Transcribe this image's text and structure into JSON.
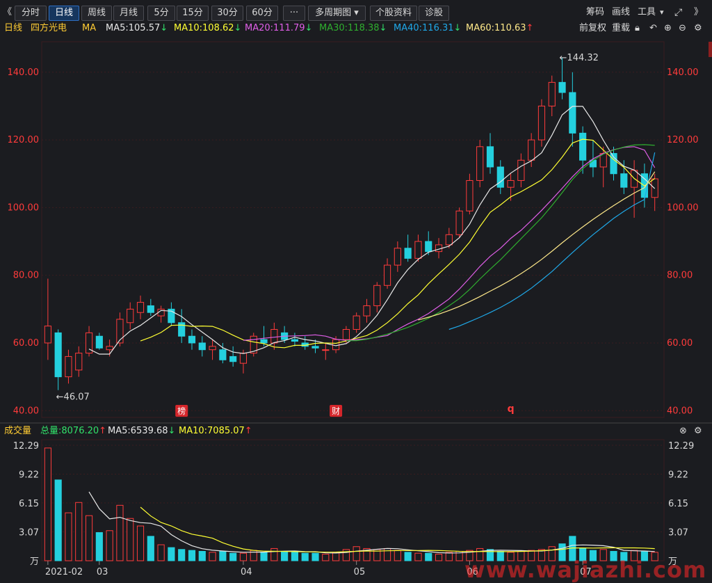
{
  "toolbar": {
    "buttons": [
      "分时",
      "日线",
      "周线",
      "月线",
      "5分",
      "15分",
      "30分",
      "60分",
      "···",
      "多周期图",
      "个股资料",
      "诊股"
    ],
    "active_index": 1,
    "multi_period_arrow": "▾",
    "right_links": [
      "筹码",
      "画线",
      "工具"
    ],
    "tool_arrow": "▾",
    "prev_glyph": "《",
    "next_glyph": "》"
  },
  "infobar": {
    "period": "日线",
    "stock_name": "四方光电",
    "indicator": "MA",
    "ma_labels": [
      {
        "text": "MA5:105.57",
        "arrow": "↓",
        "color": "#e8e8e8",
        "arrow_color": "#31e26a"
      },
      {
        "text": "MA10:108.62",
        "arrow": "↓",
        "color": "#ffff33",
        "arrow_color": "#31e26a"
      },
      {
        "text": "MA20:111.79",
        "arrow": "↓",
        "color": "#e05fe8",
        "arrow_color": "#31e26a"
      },
      {
        "text": "MA30:118.38",
        "arrow": "↓",
        "color": "#2fae2f",
        "arrow_color": "#31e26a"
      },
      {
        "text": "MA40:116.31",
        "arrow": "↓",
        "color": "#1fa8e8",
        "arrow_color": "#31e26a"
      },
      {
        "text": "MA60:110.63",
        "arrow": "↑",
        "color": "#ffe98a",
        "arrow_color": "#ff3b3b"
      }
    ],
    "right_links": [
      "前复权",
      "重载"
    ]
  },
  "volume_info": {
    "label": "成交量",
    "total": "总量:8076.20",
    "total_arrow": "↑",
    "ma5": "MA5:6539.68",
    "ma5_arrow": "↓",
    "ma10": "MA10:7085.07",
    "ma10_arrow": "↑"
  },
  "colors": {
    "up": "#ff3b3b",
    "down": "#24d0de",
    "grid": "#3a1c1f",
    "price_tick": "#ff3b3b",
    "background": "#1b1c20"
  },
  "chart_data": {
    "type": "candlestick",
    "price_axis": {
      "ticks": [
        "40.00",
        "60.00",
        "80.00",
        "100.00",
        "120.00",
        "140.00"
      ],
      "ylim": [
        38,
        149
      ]
    },
    "volume_axis": {
      "ticks": [
        "万",
        "3.07",
        "6.15",
        "9.22",
        "12.29"
      ],
      "ylim": [
        0,
        12.29
      ],
      "unit": "万"
    },
    "x_labels": [
      "2021-02",
      "03",
      "04",
      "05",
      "06",
      "07"
    ],
    "x_label_index": [
      0,
      5,
      19,
      30,
      41,
      52
    ],
    "markers": [
      "榜",
      "财",
      "q"
    ],
    "marker_index": [
      13,
      28,
      45
    ],
    "max_label": "←144.32",
    "min_label": "←46.07",
    "ohlc": [
      [
        60.0,
        79.0,
        55.0,
        65.0
      ],
      [
        63.0,
        64.0,
        46.07,
        50.0
      ],
      [
        50.0,
        58.0,
        48.0,
        56.0
      ],
      [
        52.0,
        59.0,
        50.0,
        57.0
      ],
      [
        57.0,
        65.0,
        56.0,
        63.0
      ],
      [
        62.0,
        63.0,
        58.0,
        58.5
      ],
      [
        58.0,
        61.0,
        56.0,
        59.0
      ],
      [
        60.0,
        69.0,
        59.0,
        67.0
      ],
      [
        66.0,
        72.0,
        64.0,
        70.0
      ],
      [
        69.0,
        74.0,
        67.0,
        72.0
      ],
      [
        71.0,
        73.0,
        68.0,
        69.0
      ],
      [
        68.0,
        71.0,
        66.0,
        70.0
      ],
      [
        70.0,
        72.0,
        65.0,
        66.0
      ],
      [
        66.0,
        70.0,
        60.0,
        62.0
      ],
      [
        62.0,
        64.0,
        58.0,
        60.0
      ],
      [
        60.0,
        62.0,
        56.0,
        58.0
      ],
      [
        58.0,
        61.0,
        55.0,
        59.0
      ],
      [
        58.0,
        60.0,
        54.0,
        55.0
      ],
      [
        56.0,
        59.0,
        53.0,
        54.5
      ],
      [
        54.0,
        58.0,
        51.0,
        57.0
      ],
      [
        57.0,
        63.0,
        56.0,
        62.0
      ],
      [
        61.0,
        65.0,
        59.0,
        60.0
      ],
      [
        60.0,
        66.0,
        58.0,
        64.0
      ],
      [
        63.0,
        65.0,
        60.0,
        61.0
      ],
      [
        61.0,
        63.0,
        59.0,
        60.5
      ],
      [
        60.0,
        62.0,
        58.0,
        59.0
      ],
      [
        59.0,
        61.0,
        57.0,
        58.5
      ],
      [
        58.0,
        60.0,
        55.0,
        58.0
      ],
      [
        58.0,
        62.0,
        57.0,
        61.0
      ],
      [
        61.0,
        65.0,
        60.0,
        64.0
      ],
      [
        64.0,
        69.0,
        63.0,
        68.0
      ],
      [
        68.0,
        73.0,
        66.0,
        71.0
      ],
      [
        71.0,
        78.0,
        69.0,
        77.0
      ],
      [
        77.0,
        85.0,
        76.0,
        83.0
      ],
      [
        83.0,
        90.0,
        81.0,
        88.0
      ],
      [
        88.0,
        92.0,
        84.0,
        85.0
      ],
      [
        85.0,
        92.0,
        84.0,
        90.0
      ],
      [
        90.0,
        93.0,
        86.0,
        87.0
      ],
      [
        87.0,
        91.0,
        85.0,
        89.0
      ],
      [
        89.0,
        94.0,
        88.0,
        92.0
      ],
      [
        92.0,
        100.0,
        91.0,
        99.0
      ],
      [
        99.0,
        110.0,
        98.0,
        108.0
      ],
      [
        108.0,
        120.0,
        106.0,
        118.0
      ],
      [
        118.0,
        122.0,
        110.0,
        112.0
      ],
      [
        112.0,
        114.0,
        104.0,
        106.0
      ],
      [
        106.0,
        110.0,
        102.0,
        108.0
      ],
      [
        108.0,
        116.0,
        106.0,
        114.0
      ],
      [
        114.0,
        122.0,
        112.0,
        120.0
      ],
      [
        120.0,
        132.0,
        118.0,
        130.0
      ],
      [
        130.0,
        139.0,
        127.0,
        137.0
      ],
      [
        137.0,
        144.32,
        132.0,
        134.0
      ],
      [
        134.0,
        140.0,
        118.0,
        122.0
      ],
      [
        122.0,
        124.0,
        110.0,
        114.0
      ],
      [
        114.0,
        120.0,
        109.0,
        112.0
      ],
      [
        112.0,
        118.0,
        106.0,
        116.0
      ],
      [
        116.0,
        118.0,
        108.0,
        110.0
      ],
      [
        110.0,
        114.0,
        104.0,
        106.0
      ],
      [
        106.0,
        114.0,
        97.0,
        111.0
      ],
      [
        110.0,
        113.0,
        100.0,
        103.0
      ],
      [
        103.0,
        110.0,
        99.0,
        108.5
      ]
    ],
    "volume": [
      12.0,
      8.6,
      5.1,
      6.2,
      4.8,
      3.0,
      3.2,
      5.9,
      4.5,
      3.7,
      2.6,
      1.7,
      1.4,
      1.2,
      1.1,
      1.0,
      0.9,
      1.0,
      0.8,
      0.8,
      1.1,
      0.9,
      1.3,
      1.0,
      0.9,
      0.8,
      0.8,
      0.7,
      0.9,
      1.2,
      1.5,
      1.3,
      1.2,
      1.3,
      1.1,
      0.9,
      0.8,
      0.8,
      0.7,
      0.9,
      1.0,
      1.1,
      1.3,
      1.2,
      1.0,
      0.9,
      1.0,
      1.1,
      1.2,
      1.5,
      1.8,
      2.6,
      1.3,
      1.1,
      1.2,
      1.0,
      0.9,
      1.1,
      1.0,
      0.9
    ],
    "ma": [
      {
        "name": "MA5",
        "color": "#e8e8e8",
        "values": [
          null,
          null,
          null,
          null,
          58.2,
          56.7,
          56.7,
          60.9,
          63.5,
          65.2,
          67.4,
          69.6,
          69.4,
          67.8,
          65.4,
          63.2,
          61.0,
          58.6,
          57.3,
          56.9,
          57.5,
          58.6,
          60.1,
          60.7,
          61.7,
          61.0,
          60.6,
          59.9,
          59.2,
          59.8,
          61.9,
          64.7,
          68.2,
          72.8,
          77.8,
          81.7,
          84.7,
          86.8,
          87.7,
          88.6,
          91.1,
          95.1,
          100.8,
          105.5,
          107.6,
          110.2,
          112.2,
          113.8,
          116.2,
          121.4,
          127.4,
          129.9,
          129.9,
          125.4,
          119.9,
          114.9,
          112.2,
          111.1,
          108.5,
          105.6
        ]
      },
      {
        "name": "MA10",
        "color": "#ffff33",
        "values": [
          null,
          null,
          null,
          null,
          null,
          null,
          null,
          null,
          null,
          60.6,
          61.7,
          63.1,
          65.2,
          65.3,
          64.9,
          65.0,
          64.9,
          63.8,
          62.3,
          60.9,
          60.3,
          59.8,
          58.8,
          58.6,
          59.3,
          59.3,
          59.9,
          60.0,
          59.9,
          60.6,
          61.4,
          62.2,
          63.8,
          66.0,
          68.6,
          71.6,
          74.2,
          77.5,
          80.4,
          83.2,
          86.2,
          89.8,
          94.4,
          98.6,
          100.8,
          103.2,
          104.7,
          106.4,
          108.2,
          111.2,
          114.9,
          119.1,
          120.2,
          119.9,
          117.0,
          114.2,
          111.9,
          108.6,
          106.4,
          108.6
        ]
      },
      {
        "name": "MA20",
        "color": "#e05fe8",
        "values": [
          null,
          null,
          null,
          null,
          null,
          null,
          null,
          null,
          null,
          null,
          null,
          null,
          null,
          null,
          null,
          null,
          null,
          null,
          null,
          60.8,
          61.0,
          61.4,
          61.7,
          62.0,
          62.1,
          62.2,
          62.4,
          62.0,
          61.1,
          60.8,
          61.0,
          61.2,
          61.7,
          62.2,
          64.0,
          65.6,
          67.0,
          68.7,
          70.8,
          73.0,
          75.9,
          79.2,
          82.6,
          85.6,
          88.0,
          90.9,
          93.3,
          96.2,
          99.2,
          102.4,
          105.7,
          109.1,
          112.1,
          114.4,
          116.0,
          117.1,
          117.8,
          118.0,
          117.0,
          111.8
        ]
      },
      {
        "name": "MA30",
        "color": "#2fae2f",
        "values": [
          null,
          null,
          null,
          null,
          null,
          null,
          null,
          null,
          null,
          null,
          null,
          null,
          null,
          null,
          null,
          null,
          null,
          null,
          null,
          null,
          null,
          null,
          null,
          null,
          null,
          null,
          null,
          null,
          null,
          60.7,
          60.7,
          61.1,
          61.8,
          62.6,
          63.6,
          64.6,
          65.9,
          67.3,
          69.0,
          71.0,
          73.1,
          75.8,
          78.9,
          81.8,
          84.6,
          87.7,
          90.8,
          93.9,
          97.0,
          100.6,
          104.4,
          108.3,
          111.5,
          113.9,
          115.8,
          117.0,
          117.9,
          118.5,
          118.6,
          118.4
        ]
      },
      {
        "name": "MA40",
        "color": "#1fa8e8",
        "values": [
          null,
          null,
          null,
          null,
          null,
          null,
          null,
          null,
          null,
          null,
          null,
          null,
          null,
          null,
          null,
          null,
          null,
          null,
          null,
          null,
          null,
          null,
          null,
          null,
          null,
          null,
          null,
          null,
          null,
          null,
          null,
          null,
          null,
          null,
          null,
          null,
          null,
          null,
          null,
          64.0,
          65.0,
          66.3,
          67.6,
          69.0,
          70.5,
          72.2,
          74.1,
          76.2,
          78.6,
          81.1,
          83.9,
          86.7,
          89.4,
          92.0,
          94.4,
          96.8,
          98.9,
          100.8,
          102.4,
          116.3
        ]
      },
      {
        "name": "MA60",
        "color": "#ffe98a",
        "values": [
          null,
          null,
          null,
          null,
          null,
          null,
          null,
          null,
          null,
          null,
          null,
          null,
          null,
          null,
          null,
          null,
          null,
          null,
          null,
          null,
          null,
          null,
          null,
          null,
          null,
          null,
          null,
          null,
          null,
          null,
          null,
          null,
          null,
          null,
          null,
          null,
          66.8,
          67.6,
          68.5,
          69.6,
          70.8,
          72.2,
          73.7,
          75.3,
          76.9,
          78.6,
          80.5,
          82.5,
          84.7,
          87.1,
          89.6,
          92.0,
          94.3,
          96.5,
          98.6,
          100.6,
          102.5,
          104.3,
          105.9,
          110.6
        ]
      },
      {
        "name": "VMA5",
        "color": "#e8e8e8",
        "values": [
          null,
          null,
          null,
          null,
          null,
          null,
          null,
          null,
          null,
          null,
          null,
          null,
          null,
          null,
          null,
          null,
          null,
          null,
          null,
          null,
          null,
          null,
          null,
          null,
          null,
          null,
          null,
          null,
          null,
          null,
          null,
          null,
          null,
          null,
          null,
          null,
          null,
          null,
          null,
          null,
          null,
          null,
          null,
          null,
          null,
          null,
          null,
          null,
          null,
          null,
          null,
          null,
          null,
          null,
          null,
          null,
          null,
          null,
          null,
          null
        ]
      }
    ]
  }
}
